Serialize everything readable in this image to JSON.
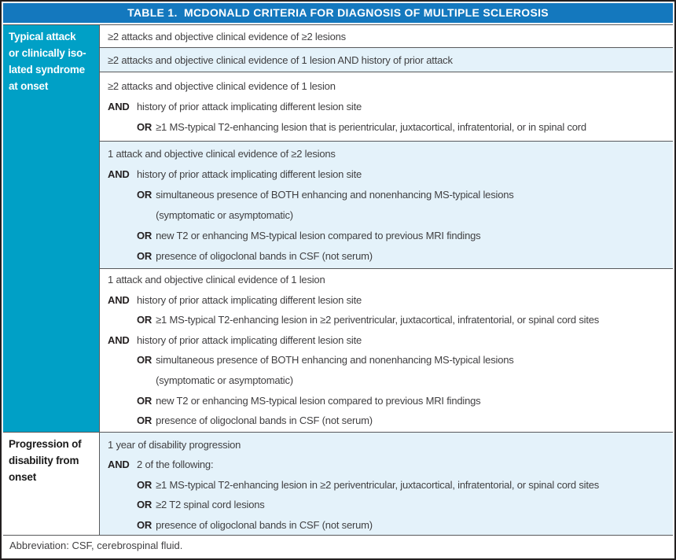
{
  "title": "TABLE 1.  MCDONALD CRITERIA FOR DIAGNOSIS OF MULTIPLE SCLEROSIS",
  "labels": {
    "and": "AND",
    "or": "OR"
  },
  "colors": {
    "header_bg": "#1478be",
    "group_label_bg": "#00a0c6",
    "row_alt_bg": "#e4f2fa",
    "text": "#414042",
    "bold_text": "#231f20",
    "border": "#58595b",
    "outer_border": "#231f20"
  },
  "groups": [
    {
      "label": "Typical attack\nor clinically iso-\nlated syndrome\nat onset",
      "rows": [
        {
          "shaded": false,
          "lines": [
            {
              "type": "plain",
              "text": "≥2 attacks and objective clinical evidence of ≥2 lesions"
            }
          ]
        },
        {
          "shaded": true,
          "lines": [
            {
              "type": "plain",
              "text": "≥2 attacks and objective clinical evidence of 1 lesion AND history of prior attack"
            }
          ]
        },
        {
          "shaded": false,
          "lines": [
            {
              "type": "plain",
              "text": "≥2 attacks and objective clinical evidence of 1 lesion"
            },
            {
              "type": "and",
              "text": "history of prior attack implicating different lesion site"
            },
            {
              "type": "or",
              "text": "≥1 MS-typical T2-enhancing lesion that is perientricular, juxtacortical, infratentorial, or in spinal cord"
            }
          ]
        },
        {
          "shaded": true,
          "lines": [
            {
              "type": "plain",
              "text": "1 attack and objective clinical evidence of ≥2 lesions"
            },
            {
              "type": "and",
              "text": "history of prior attack implicating different lesion site"
            },
            {
              "type": "or",
              "text": "simultaneous presence of BOTH enhancing and nonenhancing MS-typical lesions\n(symptomatic or asymptomatic)"
            },
            {
              "type": "or",
              "text": "new T2 or enhancing MS-typical lesion compared to previous MRI findings"
            },
            {
              "type": "or",
              "text": "presence of oligoclonal bands in CSF (not serum)"
            }
          ]
        },
        {
          "shaded": false,
          "lines": [
            {
              "type": "plain",
              "text": "1 attack and objective clinical evidence of 1 lesion"
            },
            {
              "type": "and",
              "text": "history of prior attack implicating different lesion site"
            },
            {
              "type": "or",
              "text": "≥1 MS-typical T2-enhancing lesion in ≥2 periventricular, juxtacortical, infratentorial, or spinal cord sites"
            },
            {
              "type": "and",
              "text": "history of prior attack implicating different lesion site"
            },
            {
              "type": "or",
              "text": "simultaneous presence of BOTH enhancing and nonenhancing MS-typical lesions\n(symptomatic or asymptomatic)"
            },
            {
              "type": "or",
              "text": "new T2 or enhancing MS-typical lesion compared to previous MRI findings"
            },
            {
              "type": "or",
              "text": "presence of oligoclonal bands in CSF (not serum)"
            }
          ]
        }
      ]
    },
    {
      "label": "Progression of\ndisability from\nonset",
      "rows": [
        {
          "shaded": true,
          "lines": [
            {
              "type": "plain",
              "text": "1 year of disability progression"
            },
            {
              "type": "and",
              "text": "2 of the following:"
            },
            {
              "type": "or",
              "text": "≥1 MS-typical T2-enhancing lesion in ≥2 periventricular, juxtacortical, infratentorial, or spinal cord sites"
            },
            {
              "type": "or",
              "text": "≥2 T2 spinal cord lesions"
            },
            {
              "type": "or",
              "text": "presence of oligoclonal bands in CSF (not serum)"
            }
          ]
        }
      ]
    }
  ],
  "footnote": "Abbreviation: CSF, cerebrospinal fluid."
}
